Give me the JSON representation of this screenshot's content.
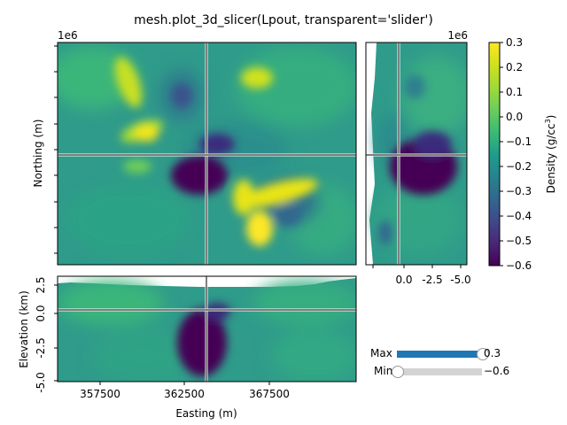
{
  "title": "mesh.plot_3d_slicer(Lpout, transparent='slider')",
  "chart_data": [
    {
      "panel": "plan",
      "type": "heatmap",
      "xlabel": "",
      "ylabel": "Northing (m)",
      "offset_text": "1e6",
      "crosshair": {
        "easting": 363100,
        "northing": "center"
      }
    },
    {
      "panel": "east-section",
      "type": "heatmap",
      "xlabel": "",
      "x_tick_labels": [
        "",
        "0.0",
        "-2.5",
        "-5.0"
      ],
      "offset_text": "1e6"
    },
    {
      "panel": "north-section",
      "type": "heatmap",
      "xlabel": "Easting (m)",
      "ylabel": "Elevation (km)",
      "x_tick_labels": [
        "357500",
        "362500",
        "367500"
      ],
      "y_tick_labels": [
        "2.5",
        "0.0",
        "-2.5",
        "-5.0"
      ],
      "x_ticks": [
        357500,
        362500,
        367500
      ],
      "crosshair": {
        "easting": 363100,
        "elevation": 0.0
      }
    }
  ],
  "colorbar": {
    "label": "Density (g/cc$^3$)",
    "label_main": "Density (g/cc",
    "label_sup": "3",
    "label_end": ")",
    "colormap": "viridis",
    "min": -0.6,
    "max": 0.3,
    "tick_labels": [
      "0.3",
      "0.2",
      "0.1",
      "0.0",
      "−0.1",
      "−0.2",
      "−0.3",
      "−0.4",
      "−0.5",
      "−0.6"
    ]
  },
  "sliders": {
    "max": {
      "label": "Max",
      "value": "0.3",
      "fraction": 1.0,
      "color": "#1f77b4"
    },
    "min": {
      "label": "Min",
      "value": "−0.6",
      "fraction": 0.0,
      "color": "#d3d3d3"
    }
  }
}
